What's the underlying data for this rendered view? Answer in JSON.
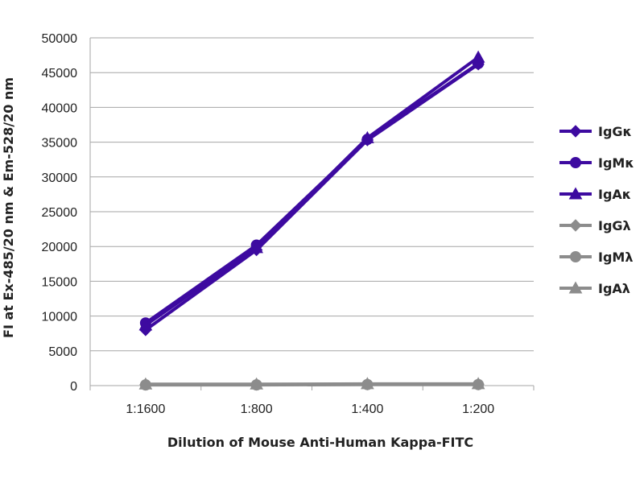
{
  "chart_data": {
    "type": "line",
    "title": "",
    "xlabel": "Dilution of Mouse Anti-Human Kappa-FITC",
    "ylabel": "FI at Ex-485/20 nm & Em-528/20 nm",
    "categories": [
      "1:1600",
      "1:800",
      "1:400",
      "1:200"
    ],
    "ylim": [
      0,
      50000
    ],
    "yticks": [
      0,
      5000,
      10000,
      15000,
      20000,
      25000,
      30000,
      35000,
      40000,
      45000,
      50000
    ],
    "grid": true,
    "legend_position": "right",
    "series": [
      {
        "name": "IgGκ",
        "marker": "diamond",
        "color": "#3d0aa0",
        "values": [
          8000,
          19500,
          35300,
          46200
        ]
      },
      {
        "name": "IgMκ",
        "marker": "circle",
        "color": "#3d0aa0",
        "values": [
          9000,
          20200,
          35400,
          46300
        ]
      },
      {
        "name": "IgAκ",
        "marker": "triangle",
        "color": "#3d0aa0",
        "values": [
          8700,
          19800,
          35600,
          47200
        ]
      },
      {
        "name": "IgGλ",
        "marker": "diamond",
        "color": "#8c8c8c",
        "values": [
          150,
          150,
          200,
          200
        ]
      },
      {
        "name": "IgMλ",
        "marker": "circle",
        "color": "#8c8c8c",
        "values": [
          100,
          100,
          150,
          150
        ]
      },
      {
        "name": "IgAλ",
        "marker": "triangle",
        "color": "#8c8c8c",
        "values": [
          200,
          200,
          250,
          250
        ]
      }
    ]
  }
}
